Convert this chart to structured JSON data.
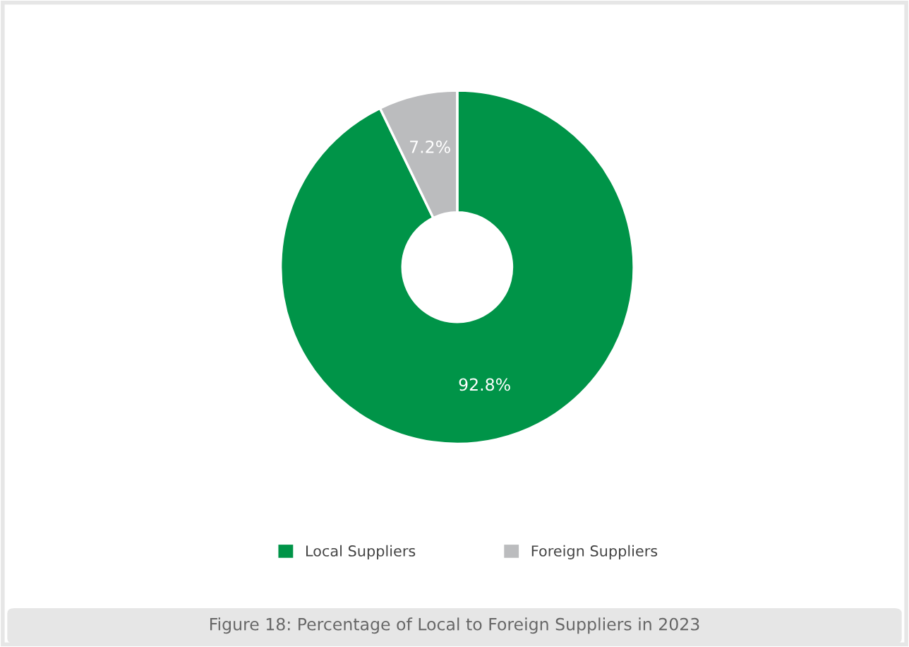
{
  "chart_data": {
    "type": "donut",
    "title": "Figure 18: Percentage of Local to Foreign Suppliers in 2023",
    "categories": [
      "Local Suppliers",
      "Foreign Suppliers"
    ],
    "values": [
      92.8,
      7.2
    ],
    "colors": [
      "#009448",
      "#bbbcbe"
    ],
    "value_labels": [
      "92.8%",
      "7.2%"
    ],
    "legend": "bottom"
  }
}
